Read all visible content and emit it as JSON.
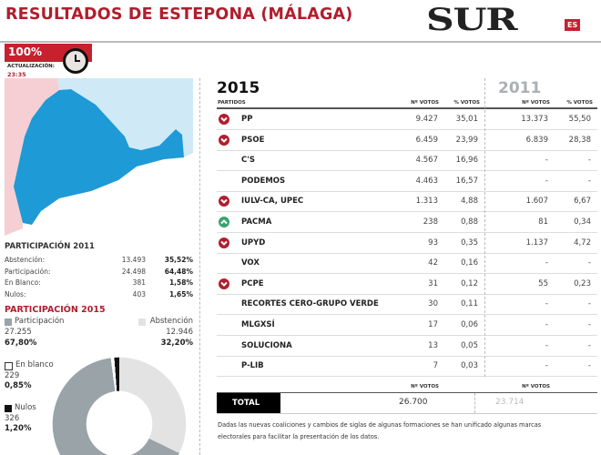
{
  "header": {
    "title": "RESULTADOS DE ESTEPONA (MÁLAGA)",
    "logo": "SUR",
    "logo_badge": "ES"
  },
  "status": {
    "scrutiny": "100%",
    "update_label": "ACTUALIZACIÓN:",
    "update_time": "23:35",
    "icon": "clock-icon"
  },
  "colors": {
    "brand": "#b01e2d",
    "map_main": "#1e9ad6",
    "map_light": "#cfe9f7",
    "map_pink": "#f5cfd3",
    "participation": "#9aa3a8",
    "abstention": "#e3e3e3",
    "up": "#3aa36b",
    "down": "#b01e2d"
  },
  "participacion_2011": {
    "title": "PARTICIPACIÓN 2011",
    "rows": [
      {
        "label": "Abstención:",
        "value": "13.493",
        "pct": "35,52%"
      },
      {
        "label": "Participación:",
        "value": "24.498",
        "pct": "64,48%"
      },
      {
        "label": "En Blanco:",
        "value": "381",
        "pct": "1,58%"
      },
      {
        "label": "Nulos:",
        "value": "403",
        "pct": "1,65%"
      }
    ]
  },
  "participacion_2015": {
    "title": "PARTICIPACIÓN 2015",
    "participacion": {
      "label": "Participación",
      "value": "27.255",
      "pct": "67,80%",
      "share": 67.8
    },
    "abstencion": {
      "label": "Abstención",
      "value": "12.946",
      "pct": "32,20%",
      "share": 32.2
    },
    "blanco": {
      "label": "En blanco",
      "value": "229",
      "pct": "0,85%",
      "share": 0.85
    },
    "nulos": {
      "label": "Nulos",
      "value": "326",
      "pct": "1,20%",
      "share": 1.2
    }
  },
  "results": {
    "year_2015": "2015",
    "year_2011": "2011",
    "col_party": "PARTIDOS",
    "col_votes": "Nº VOTOS",
    "col_pct": "% VOTOS",
    "rows": [
      {
        "party": "PP",
        "v15": "9.427",
        "p15": "35,01",
        "v11": "13.373",
        "p11": "55,50",
        "trend": "down"
      },
      {
        "party": "PSOE",
        "v15": "6.459",
        "p15": "23,99",
        "v11": "6.839",
        "p11": "28,38",
        "trend": "down"
      },
      {
        "party": "C'S",
        "v15": "4.567",
        "p15": "16,96",
        "v11": "-",
        "p11": "-",
        "trend": ""
      },
      {
        "party": "PODEMOS",
        "v15": "4.463",
        "p15": "16,57",
        "v11": "-",
        "p11": "-",
        "trend": ""
      },
      {
        "party": "IULV-CA, UPEC",
        "v15": "1.313",
        "p15": "4,88",
        "v11": "1.607",
        "p11": "6,67",
        "trend": "down"
      },
      {
        "party": "PACMA",
        "v15": "238",
        "p15": "0,88",
        "v11": "81",
        "p11": "0,34",
        "trend": "up"
      },
      {
        "party": "UPYD",
        "v15": "93",
        "p15": "0,35",
        "v11": "1.137",
        "p11": "4,72",
        "trend": "down"
      },
      {
        "party": "VOX",
        "v15": "42",
        "p15": "0,16",
        "v11": "-",
        "p11": "-",
        "trend": ""
      },
      {
        "party": "PCPE",
        "v15": "31",
        "p15": "0,12",
        "v11": "55",
        "p11": "0,23",
        "trend": "down"
      },
      {
        "party": "RECORTES CERO-GRUPO VERDE",
        "v15": "30",
        "p15": "0,11",
        "v11": "-",
        "p11": "-",
        "trend": ""
      },
      {
        "party": "MLGXSÍ",
        "v15": "17",
        "p15": "0,06",
        "v11": "-",
        "p11": "-",
        "trend": ""
      },
      {
        "party": "SOLUCIONA",
        "v15": "13",
        "p15": "0,05",
        "v11": "-",
        "p11": "-",
        "trend": ""
      },
      {
        "party": "P-LIB",
        "v15": "7",
        "p15": "0,03",
        "v11": "-",
        "p11": "-",
        "trend": ""
      }
    ],
    "total_label": "TOTAL",
    "total_15": "26.700",
    "total_11": "23.714",
    "footnote_1": "Dadas las nuevas coaliciones y cambios de siglas de algunas formaciones se han unificado algunas marcas",
    "footnote_2": "electorales para facilitar la presentación de los datos."
  }
}
